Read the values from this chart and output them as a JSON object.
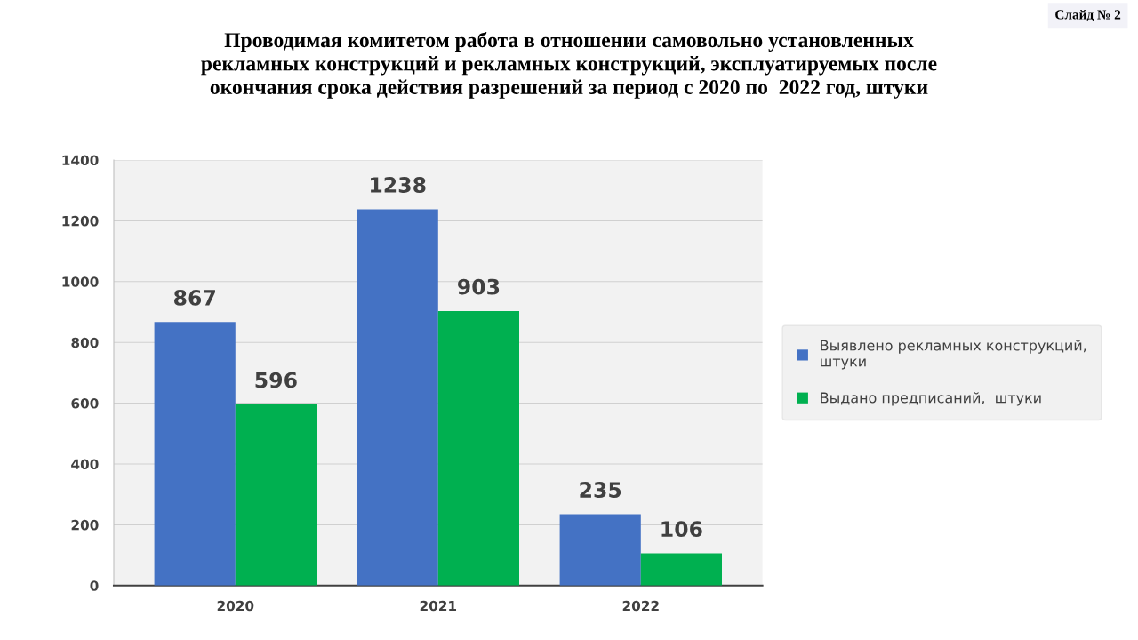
{
  "chart_data": {
    "type": "bar",
    "title": "Проводимая комитетом работа в отношении самовольно установленных\nрекламных конструкций и рекламных конструкций, эксплуатируемых после\nокончания срока действия разрешений за период с 2020 по  2022 год, штуки",
    "annotations": [
      "Слайд № 2"
    ],
    "categories": [
      "2020",
      "2021",
      "2022"
    ],
    "series": [
      {
        "name": "Выявлено рекламных конструкций, штуки",
        "color": "#4472c4",
        "values": [
          867,
          1238,
          235
        ]
      },
      {
        "name": "Выдано предписаний,  штуки",
        "color": "#00b050",
        "values": [
          596,
          903,
          106
        ]
      }
    ],
    "ylim": [
      0,
      1400
    ],
    "yticks": [
      0,
      200,
      400,
      600,
      800,
      1000,
      1200,
      1400
    ],
    "grid": "y",
    "legend": "right",
    "data_labels": true
  }
}
